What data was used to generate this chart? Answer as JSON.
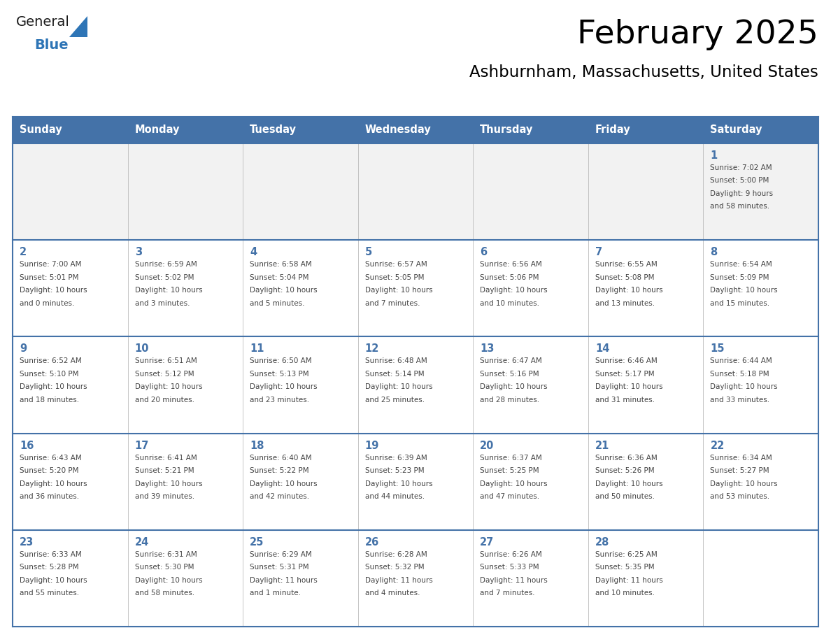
{
  "title": "February 2025",
  "subtitle": "Ashburnham, Massachusetts, United States",
  "header_bg": "#4472a8",
  "header_text_color": "#FFFFFF",
  "border_color": "#4472a8",
  "week_sep_color": "#4472a8",
  "day_number_color": "#4472a8",
  "cell_text_color": "#444444",
  "cell_bg_normal": "#FFFFFF",
  "cell_bg_first": "#F2F2F2",
  "days_of_week": [
    "Sunday",
    "Monday",
    "Tuesday",
    "Wednesday",
    "Thursday",
    "Friday",
    "Saturday"
  ],
  "weeks": [
    [
      {
        "day": null,
        "info": ""
      },
      {
        "day": null,
        "info": ""
      },
      {
        "day": null,
        "info": ""
      },
      {
        "day": null,
        "info": ""
      },
      {
        "day": null,
        "info": ""
      },
      {
        "day": null,
        "info": ""
      },
      {
        "day": 1,
        "info": "Sunrise: 7:02 AM\nSunset: 5:00 PM\nDaylight: 9 hours\nand 58 minutes."
      }
    ],
    [
      {
        "day": 2,
        "info": "Sunrise: 7:00 AM\nSunset: 5:01 PM\nDaylight: 10 hours\nand 0 minutes."
      },
      {
        "day": 3,
        "info": "Sunrise: 6:59 AM\nSunset: 5:02 PM\nDaylight: 10 hours\nand 3 minutes."
      },
      {
        "day": 4,
        "info": "Sunrise: 6:58 AM\nSunset: 5:04 PM\nDaylight: 10 hours\nand 5 minutes."
      },
      {
        "day": 5,
        "info": "Sunrise: 6:57 AM\nSunset: 5:05 PM\nDaylight: 10 hours\nand 7 minutes."
      },
      {
        "day": 6,
        "info": "Sunrise: 6:56 AM\nSunset: 5:06 PM\nDaylight: 10 hours\nand 10 minutes."
      },
      {
        "day": 7,
        "info": "Sunrise: 6:55 AM\nSunset: 5:08 PM\nDaylight: 10 hours\nand 13 minutes."
      },
      {
        "day": 8,
        "info": "Sunrise: 6:54 AM\nSunset: 5:09 PM\nDaylight: 10 hours\nand 15 minutes."
      }
    ],
    [
      {
        "day": 9,
        "info": "Sunrise: 6:52 AM\nSunset: 5:10 PM\nDaylight: 10 hours\nand 18 minutes."
      },
      {
        "day": 10,
        "info": "Sunrise: 6:51 AM\nSunset: 5:12 PM\nDaylight: 10 hours\nand 20 minutes."
      },
      {
        "day": 11,
        "info": "Sunrise: 6:50 AM\nSunset: 5:13 PM\nDaylight: 10 hours\nand 23 minutes."
      },
      {
        "day": 12,
        "info": "Sunrise: 6:48 AM\nSunset: 5:14 PM\nDaylight: 10 hours\nand 25 minutes."
      },
      {
        "day": 13,
        "info": "Sunrise: 6:47 AM\nSunset: 5:16 PM\nDaylight: 10 hours\nand 28 minutes."
      },
      {
        "day": 14,
        "info": "Sunrise: 6:46 AM\nSunset: 5:17 PM\nDaylight: 10 hours\nand 31 minutes."
      },
      {
        "day": 15,
        "info": "Sunrise: 6:44 AM\nSunset: 5:18 PM\nDaylight: 10 hours\nand 33 minutes."
      }
    ],
    [
      {
        "day": 16,
        "info": "Sunrise: 6:43 AM\nSunset: 5:20 PM\nDaylight: 10 hours\nand 36 minutes."
      },
      {
        "day": 17,
        "info": "Sunrise: 6:41 AM\nSunset: 5:21 PM\nDaylight: 10 hours\nand 39 minutes."
      },
      {
        "day": 18,
        "info": "Sunrise: 6:40 AM\nSunset: 5:22 PM\nDaylight: 10 hours\nand 42 minutes."
      },
      {
        "day": 19,
        "info": "Sunrise: 6:39 AM\nSunset: 5:23 PM\nDaylight: 10 hours\nand 44 minutes."
      },
      {
        "day": 20,
        "info": "Sunrise: 6:37 AM\nSunset: 5:25 PM\nDaylight: 10 hours\nand 47 minutes."
      },
      {
        "day": 21,
        "info": "Sunrise: 6:36 AM\nSunset: 5:26 PM\nDaylight: 10 hours\nand 50 minutes."
      },
      {
        "day": 22,
        "info": "Sunrise: 6:34 AM\nSunset: 5:27 PM\nDaylight: 10 hours\nand 53 minutes."
      }
    ],
    [
      {
        "day": 23,
        "info": "Sunrise: 6:33 AM\nSunset: 5:28 PM\nDaylight: 10 hours\nand 55 minutes."
      },
      {
        "day": 24,
        "info": "Sunrise: 6:31 AM\nSunset: 5:30 PM\nDaylight: 10 hours\nand 58 minutes."
      },
      {
        "day": 25,
        "info": "Sunrise: 6:29 AM\nSunset: 5:31 PM\nDaylight: 11 hours\nand 1 minute."
      },
      {
        "day": 26,
        "info": "Sunrise: 6:28 AM\nSunset: 5:32 PM\nDaylight: 11 hours\nand 4 minutes."
      },
      {
        "day": 27,
        "info": "Sunrise: 6:26 AM\nSunset: 5:33 PM\nDaylight: 11 hours\nand 7 minutes."
      },
      {
        "day": 28,
        "info": "Sunrise: 6:25 AM\nSunset: 5:35 PM\nDaylight: 11 hours\nand 10 minutes."
      },
      {
        "day": null,
        "info": ""
      }
    ]
  ],
  "logo_text_general": "General",
  "logo_text_blue": "Blue",
  "logo_color_general": "#1a1a1a",
  "logo_triangle_color": "#2E75B6",
  "logo_blue_color": "#2E75B6"
}
